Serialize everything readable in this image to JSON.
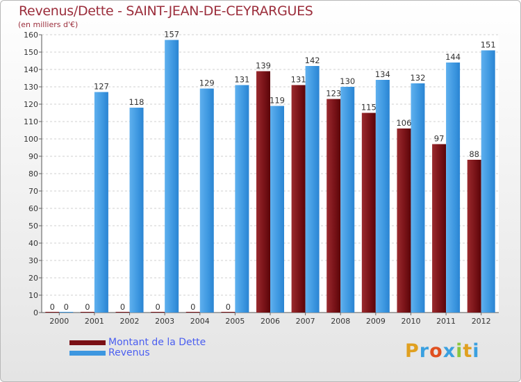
{
  "title": "Revenus/Dette - SAINT-JEAN-DE-CEYRARGUES",
  "subtitle": "(en milliers d'€)",
  "legend": {
    "debt_label": "Montant de la Dette",
    "revenue_label": "Revenus"
  },
  "logo": {
    "letters": [
      "P",
      "r",
      "o",
      "x",
      "i",
      "t",
      "i"
    ],
    "colors": [
      "#e0a020",
      "#3aa0e0",
      "#e05020",
      "#3aa0e0",
      "#8cc63f",
      "#e0a020",
      "#3aa0e0"
    ]
  },
  "colors": {
    "debt": "#7a0f14",
    "revenue": "#3d97e0",
    "text_accent": "#9b2d3b",
    "legend_text": "#4a5ef0"
  },
  "chart_data": {
    "type": "bar",
    "categories": [
      "2000",
      "2001",
      "2002",
      "2003",
      "2004",
      "2005",
      "2006",
      "2007",
      "2008",
      "2009",
      "2010",
      "2011",
      "2012"
    ],
    "series": [
      {
        "name": "Montant de la Dette",
        "values": [
          0,
          0,
          0,
          0,
          0,
          0,
          139,
          131,
          123,
          115,
          106,
          97,
          88
        ]
      },
      {
        "name": "Revenus",
        "values": [
          0,
          127,
          118,
          157,
          129,
          131,
          119,
          142,
          130,
          134,
          132,
          144,
          151
        ]
      }
    ],
    "yticks": [
      0,
      10,
      20,
      30,
      40,
      50,
      60,
      70,
      80,
      90,
      100,
      110,
      120,
      130,
      140,
      150,
      160
    ],
    "ylim": [
      0,
      160
    ],
    "grid": true,
    "legend_position": "bottom-left"
  }
}
